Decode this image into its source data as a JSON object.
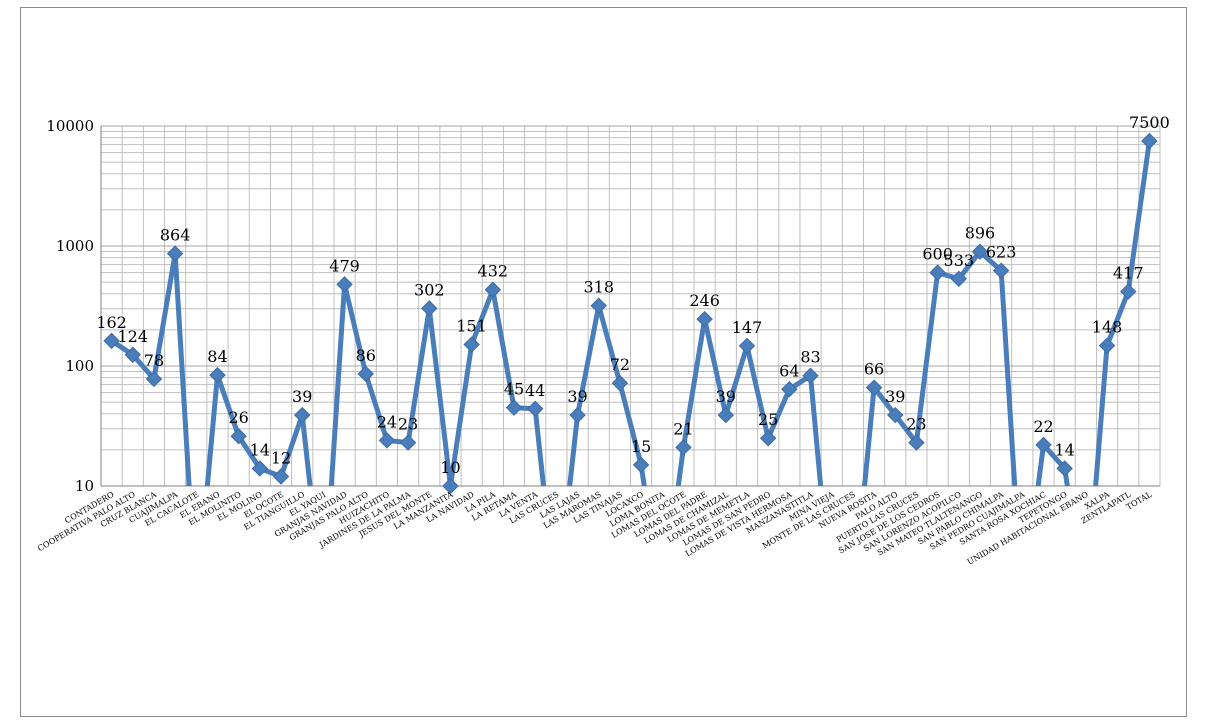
{
  "chart_data": {
    "type": "line",
    "yscale": "log",
    "ylim": [
      10,
      10000
    ],
    "yticks": [
      "10",
      "100",
      "1000",
      "10000"
    ],
    "grid": true,
    "legend": "none",
    "line_color": "#4a7ebb",
    "categories": [
      "CONTADERO",
      "COOPERATIVA PALO ALTO",
      "CRUZ BLANCA",
      "CUAJIMALPA",
      "EL CACALOTE",
      "EL EBANO",
      "EL MOLINITO",
      "EL MOLINO",
      "EL OCOTE",
      "EL TIANGUILLO",
      "EL YAQUI",
      "GRANJAS NAVIDAD",
      "GRANJAS PALO ALTO",
      "HUIZACHITO",
      "JARDINES DE LA PALMA",
      "JESUS DEL MONTE",
      "LA MANZANITA",
      "LA NAVIDAD",
      "LA PILA",
      "LA RETAMA",
      "LA VENTA",
      "LAS CRUCES",
      "LAS LAJAS",
      "LAS MAROMAS",
      "LAS TINAJAS",
      "LOCAXCO",
      "LOMA BONITA",
      "LOMAS DEL OCOTE",
      "LOMAS DEL PADRE",
      "LOMAS DE CHAMIZAL",
      "LOMAS DE MEMETLA",
      "LOMAS DE SAN PEDRO",
      "LOMAS DE VISTA HERMOSA",
      "MANZANASTITLA",
      "MINA VIEJA",
      "MONTE DE LAS CRUCES",
      "NUEVA ROSITA",
      "PALO ALTO",
      "PUERTO LAS CRUCES",
      "SAN JOSE DE LOS CEDROS",
      "SAN LORENZO ACOPILCO",
      "SAN MATEO TLALTENANGO",
      "SAN PABLO CHIMALPA",
      "SAN PEDRO CUAJIMALPA",
      "SANTA ROSA XOCHIAC",
      "TEPETONGO",
      "UNIDAD HABITACIONAL EBANO",
      "XALPA",
      "ZENTLAPATL",
      "TOTAL"
    ],
    "values": [
      162,
      124,
      78,
      864,
      1,
      84,
      26,
      14,
      12,
      39,
      1,
      479,
      86,
      24,
      23,
      302,
      10,
      151,
      432,
      45,
      44,
      1,
      39,
      318,
      72,
      15,
      1,
      21,
      246,
      39,
      147,
      25,
      64,
      83,
      1,
      1,
      66,
      39,
      23,
      600,
      533,
      896,
      623,
      1,
      22,
      14,
      1,
      148,
      417,
      7500
    ],
    "data_labels": [
      "162",
      "124",
      "78",
      "864",
      "",
      "84",
      "26",
      "14",
      "12",
      "39",
      "",
      "479",
      "86",
      "24",
      "23",
      "302",
      "10",
      "151",
      "432",
      "45",
      "44",
      "",
      "39",
      "318",
      "72",
      "15",
      "",
      "21",
      "246",
      "39",
      "147",
      "25",
      "64",
      "83",
      "",
      "",
      "66",
      "39",
      "23",
      "600",
      "533",
      "896",
      "623",
      "",
      "22",
      "14",
      "",
      "148",
      "417",
      "7500"
    ]
  }
}
